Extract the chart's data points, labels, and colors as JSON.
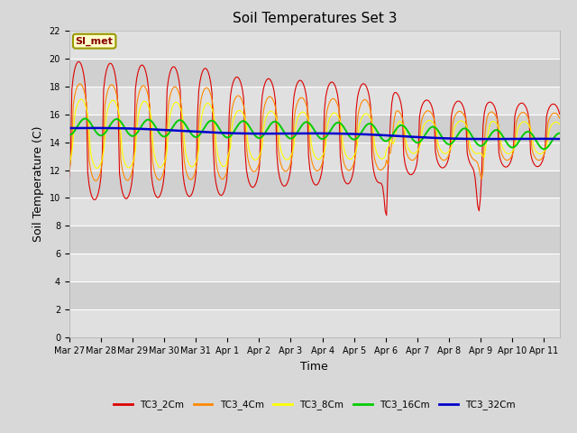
{
  "title": "Soil Temperatures Set 3",
  "xlabel": "Time",
  "ylabel": "Soil Temperature (C)",
  "annotation": "SI_met",
  "ylim": [
    0,
    22
  ],
  "yticks": [
    0,
    2,
    4,
    6,
    8,
    10,
    12,
    14,
    16,
    18,
    20,
    22
  ],
  "fig_facecolor": "#d8d8d8",
  "plot_facecolor": "#e8e8e8",
  "grid_color": "#ffffff",
  "series_colors": {
    "TC3_2Cm": "#dd0000",
    "TC3_4Cm": "#ff8800",
    "TC3_8Cm": "#ffff00",
    "TC3_16Cm": "#00cc00",
    "TC3_32Cm": "#0000cc"
  },
  "xtick_labels": [
    "Mar 27",
    "Mar 28",
    "Mar 29",
    "Mar 30",
    "Mar 31",
    "Apr 1",
    "Apr 2",
    "Apr 3",
    "Apr 4",
    "Apr 5",
    "Apr 6",
    "Apr 7",
    "Apr 8",
    "Apr 9",
    "Apr 10",
    "Apr 11"
  ],
  "xtick_positions": [
    0,
    1,
    2,
    3,
    4,
    5,
    6,
    7,
    8,
    9,
    10,
    11,
    12,
    13,
    14,
    15
  ],
  "xlim": [
    0,
    15.5
  ],
  "title_fontsize": 11,
  "tick_fontsize": 7,
  "axis_label_fontsize": 9
}
